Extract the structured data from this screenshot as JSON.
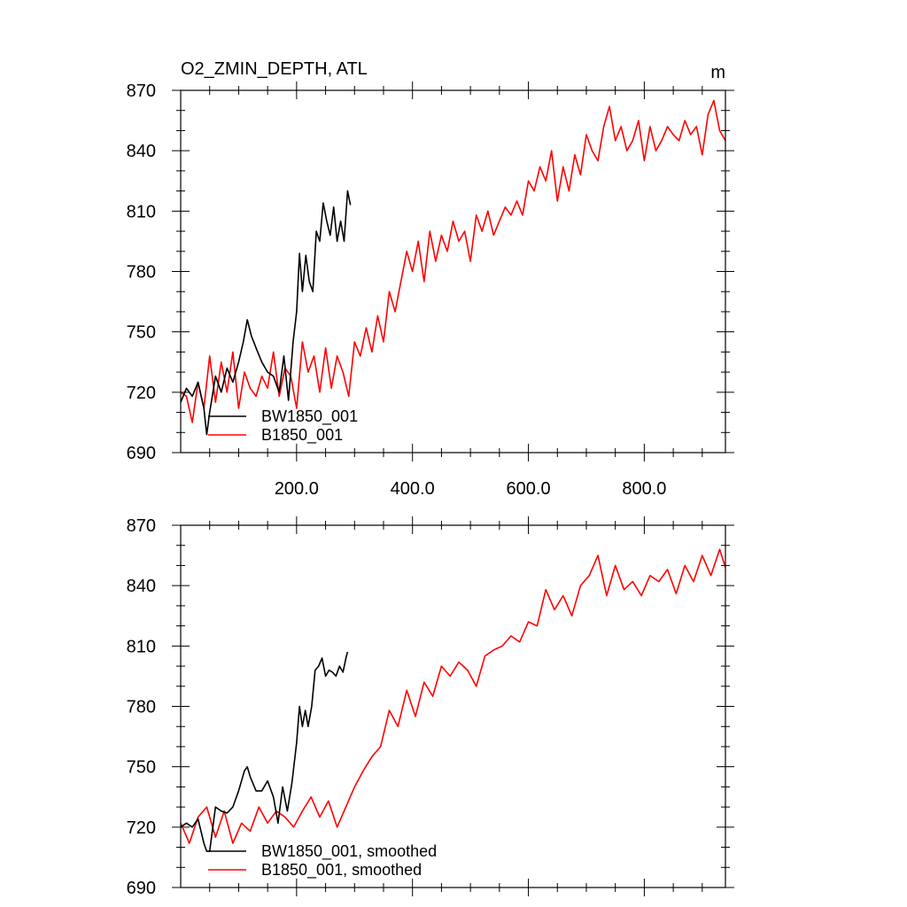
{
  "chart_data": [
    {
      "type": "line",
      "title": "O2_ZMIN_DEPTH, ATL",
      "units": "m",
      "xlabel": "",
      "ylabel": "",
      "xlim": [
        0,
        940
      ],
      "ylim": [
        690,
        870
      ],
      "xticks": [
        200,
        400,
        600,
        800
      ],
      "xtick_labels": [
        "200.0",
        "400.0",
        "600.0",
        "800.0"
      ],
      "yticks": [
        690,
        720,
        750,
        780,
        810,
        840,
        870
      ],
      "ytick_labels": [
        "690",
        "720",
        "750",
        "780",
        "810",
        "840",
        "870"
      ],
      "legend_position": "bottom-left",
      "series": [
        {
          "name": "BW1850_001",
          "color": "#000000",
          "x": [
            0,
            10,
            20,
            30,
            40,
            45,
            50,
            60,
            70,
            80,
            90,
            100,
            108,
            115,
            122,
            130,
            140,
            150,
            160,
            170,
            178,
            186,
            194,
            200,
            205,
            210,
            216,
            222,
            228,
            234,
            240,
            246,
            252,
            258,
            264,
            270,
            276,
            282,
            288,
            293
          ],
          "values": [
            715,
            722,
            718,
            725,
            712,
            699,
            710,
            728,
            720,
            732,
            725,
            735,
            745,
            756,
            748,
            742,
            735,
            730,
            728,
            720,
            738,
            716,
            745,
            760,
            789,
            770,
            788,
            775,
            770,
            800,
            795,
            814,
            805,
            798,
            812,
            795,
            805,
            795,
            820,
            813
          ]
        },
        {
          "name": "B1850_001",
          "color": "#ff0000",
          "x": [
            0,
            10,
            20,
            30,
            40,
            50,
            60,
            70,
            80,
            90,
            100,
            110,
            120,
            130,
            140,
            150,
            160,
            170,
            180,
            190,
            200,
            210,
            220,
            230,
            240,
            250,
            260,
            270,
            280,
            290,
            300,
            310,
            320,
            330,
            340,
            350,
            360,
            370,
            380,
            390,
            400,
            410,
            420,
            430,
            440,
            450,
            460,
            470,
            480,
            490,
            500,
            510,
            520,
            530,
            540,
            550,
            560,
            570,
            580,
            590,
            600,
            610,
            620,
            630,
            640,
            650,
            660,
            670,
            680,
            690,
            700,
            710,
            720,
            730,
            740,
            750,
            760,
            770,
            780,
            790,
            800,
            810,
            820,
            830,
            840,
            850,
            860,
            870,
            880,
            890,
            900,
            910,
            920,
            930,
            940
          ],
          "values": [
            720,
            718,
            705,
            725,
            712,
            738,
            715,
            735,
            720,
            740,
            712,
            730,
            722,
            718,
            728,
            722,
            740,
            718,
            732,
            728,
            712,
            745,
            730,
            738,
            720,
            742,
            722,
            738,
            730,
            718,
            745,
            738,
            752,
            740,
            758,
            745,
            770,
            760,
            775,
            790,
            780,
            795,
            775,
            800,
            785,
            798,
            790,
            805,
            795,
            800,
            785,
            808,
            800,
            810,
            798,
            805,
            812,
            808,
            815,
            808,
            825,
            820,
            832,
            825,
            840,
            815,
            832,
            820,
            838,
            828,
            848,
            840,
            835,
            852,
            862,
            845,
            852,
            840,
            845,
            855,
            835,
            852,
            840,
            845,
            852,
            848,
            845,
            855,
            848,
            852,
            838,
            858,
            865,
            850,
            845
          ]
        }
      ]
    },
    {
      "type": "line",
      "title": "",
      "xlabel": "",
      "ylabel": "",
      "xlim": [
        0,
        940
      ],
      "ylim": [
        690,
        870
      ],
      "xticks": [
        200,
        400,
        600,
        800
      ],
      "xtick_labels": [],
      "yticks": [
        690,
        720,
        750,
        780,
        810,
        840,
        870
      ],
      "ytick_labels": [
        "690",
        "720",
        "750",
        "780",
        "810",
        "840",
        "870"
      ],
      "legend_position": "bottom-left",
      "series": [
        {
          "name": "BW1850_001, smoothed",
          "color": "#000000",
          "x": [
            0,
            10,
            20,
            30,
            40,
            45,
            50,
            60,
            70,
            80,
            90,
            100,
            110,
            115,
            120,
            130,
            140,
            150,
            160,
            168,
            176,
            184,
            192,
            200,
            205,
            210,
            215,
            220,
            226,
            232,
            238,
            244,
            250,
            256,
            262,
            268,
            274,
            280,
            286,
            288
          ],
          "values": [
            720,
            722,
            720,
            724,
            712,
            708,
            708,
            730,
            728,
            727,
            730,
            738,
            748,
            750,
            745,
            738,
            738,
            743,
            735,
            722,
            740,
            728,
            742,
            762,
            780,
            770,
            778,
            770,
            780,
            798,
            800,
            804,
            795,
            798,
            797,
            795,
            800,
            797,
            805,
            807
          ]
        },
        {
          "name": "B1850_001, smoothed",
          "color": "#ff0000",
          "x": [
            0,
            15,
            30,
            45,
            60,
            75,
            90,
            105,
            120,
            135,
            150,
            165,
            180,
            195,
            210,
            225,
            240,
            255,
            270,
            285,
            300,
            315,
            330,
            345,
            360,
            375,
            390,
            405,
            420,
            435,
            450,
            465,
            480,
            495,
            510,
            525,
            540,
            555,
            570,
            585,
            600,
            615,
            630,
            645,
            660,
            675,
            690,
            705,
            720,
            735,
            750,
            765,
            780,
            795,
            810,
            825,
            840,
            855,
            870,
            885,
            900,
            915,
            930,
            940
          ],
          "values": [
            722,
            712,
            725,
            730,
            715,
            728,
            712,
            722,
            718,
            730,
            722,
            728,
            725,
            720,
            728,
            735,
            725,
            733,
            720,
            730,
            740,
            748,
            755,
            760,
            778,
            770,
            788,
            775,
            792,
            785,
            800,
            795,
            802,
            798,
            790,
            805,
            808,
            810,
            815,
            812,
            822,
            820,
            838,
            828,
            835,
            825,
            840,
            845,
            855,
            835,
            850,
            838,
            842,
            835,
            845,
            842,
            848,
            836,
            850,
            842,
            855,
            845,
            858,
            849
          ]
        }
      ]
    }
  ]
}
